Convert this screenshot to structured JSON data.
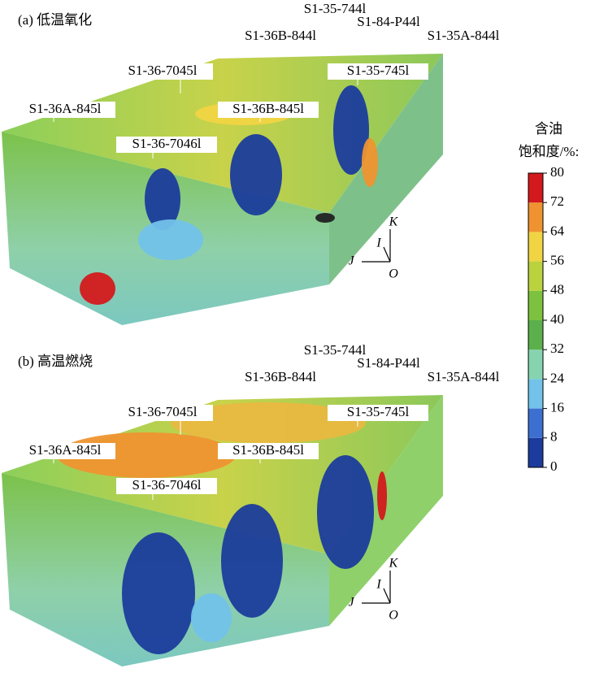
{
  "colorbar": {
    "title": [
      "含油",
      "饱和度/%:"
    ],
    "lim": [
      0,
      80
    ],
    "ticks": [
      0,
      8,
      16,
      24,
      32,
      40,
      48,
      56,
      64,
      72,
      80
    ],
    "colors": [
      "#1b3c9c",
      "#3d6fd0",
      "#72c2ea",
      "#86d3b0",
      "#5cb04c",
      "#7cc23e",
      "#b9d23e",
      "#f1d443",
      "#ef9330",
      "#d3191c"
    ]
  },
  "panels": [
    {
      "title": "(a) 低温氧化",
      "wells": [
        "S1-35-744l",
        "S1-84-P44l",
        "S1-36B-844l",
        "S1-35A-844l",
        "S1-36-7045l",
        "S1-35-745l",
        "S1-36A-845l",
        "S1-36B-845l",
        "S1-36-7046l"
      ],
      "axes": [
        "K",
        "I",
        "J",
        "O"
      ]
    },
    {
      "title": "(b) 高温燃烧",
      "wells": [
        "S1-35-744l",
        "S1-84-P44l",
        "S1-36B-844l",
        "S1-35A-844l",
        "S1-36-7045l",
        "S1-35-745l",
        "S1-36A-845l",
        "S1-36B-845l",
        "S1-36-7046l"
      ],
      "axes": [
        "K",
        "I",
        "J",
        "O"
      ]
    }
  ]
}
